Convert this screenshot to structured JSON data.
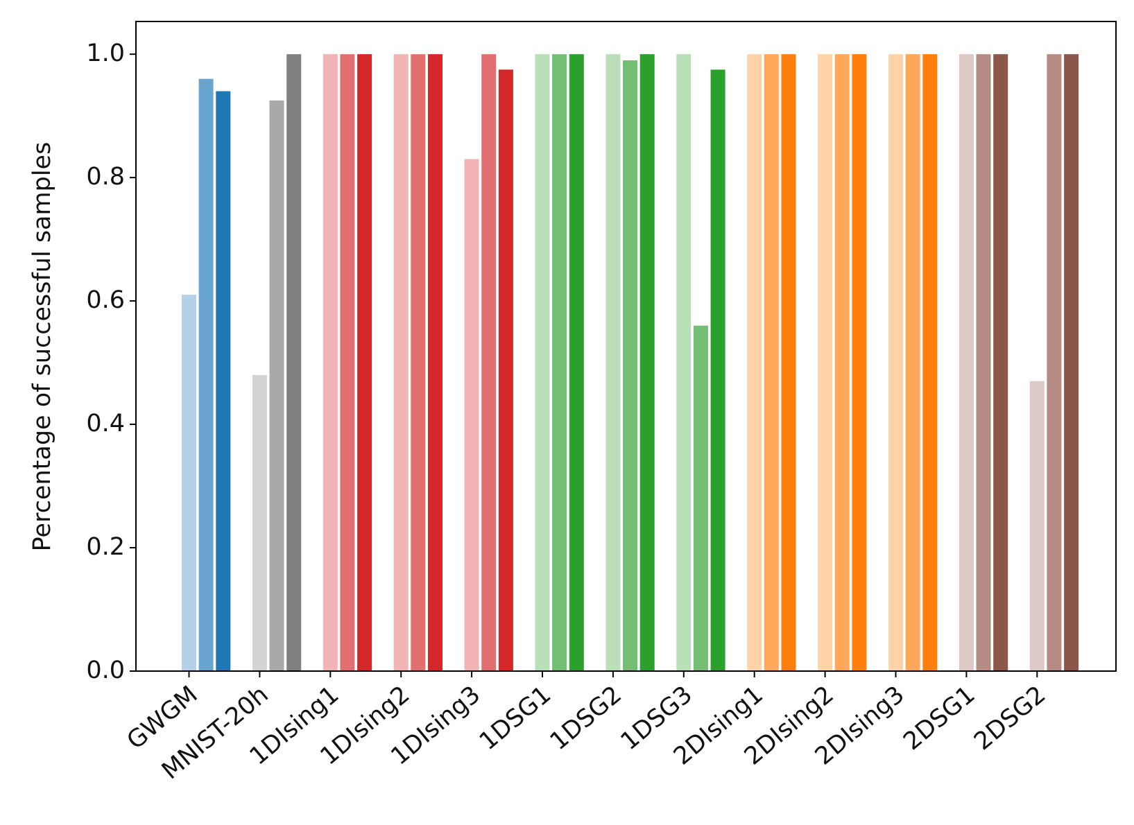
{
  "chart_data": {
    "type": "bar",
    "ylabel": "Percentage of successful samples",
    "categories": [
      "GWGM",
      "MNIST-20h",
      "1DIsing1",
      "1DIsing2",
      "1DIsing3",
      "1DSG1",
      "1DSG2",
      "1DSG3",
      "2DIsing1",
      "2DIsing2",
      "2DIsing3",
      "2DSG1",
      "2DSG2"
    ],
    "series": [
      {
        "colors": [
          "#b3d0e6",
          "#d3d3d3",
          "#f1b3b3",
          "#f1b3b3",
          "#f1b3b3",
          "#b8dfb8",
          "#b8dfb8",
          "#b8dfb8",
          "#ffd2a8",
          "#ffd2a8",
          "#ffd2a8",
          "#dcc8c4",
          "#dcc8c4"
        ],
        "values": [
          0.61,
          0.48,
          1.0,
          1.0,
          0.83,
          1.0,
          1.0,
          1.0,
          1.0,
          1.0,
          1.0,
          1.0,
          0.47
        ]
      },
      {
        "colors": [
          "#6aa5d0",
          "#a9a9a9",
          "#e26f6f",
          "#e26f6f",
          "#e26f6f",
          "#74be74",
          "#74be74",
          "#74be74",
          "#ffa85a",
          "#ffa85a",
          "#ffa85a",
          "#b58b83",
          "#b58b83"
        ],
        "values": [
          0.96,
          0.925,
          1.0,
          1.0,
          1.0,
          1.0,
          0.99,
          0.56,
          1.0,
          1.0,
          1.0,
          1.0,
          1.0
        ]
      },
      {
        "colors": [
          "#1f77b4",
          "#7f7f7f",
          "#d62728",
          "#d62728",
          "#d62728",
          "#2ca02c",
          "#2ca02c",
          "#2ca02c",
          "#ff7f0e",
          "#ff7f0e",
          "#ff7f0e",
          "#8c564b",
          "#8c564b"
        ],
        "values": [
          0.94,
          1.0,
          1.0,
          1.0,
          0.975,
          1.0,
          1.0,
          0.975,
          1.0,
          1.0,
          1.0,
          1.0,
          1.0
        ]
      }
    ],
    "ylim": [
      0,
      1.053
    ],
    "yticks": [
      {
        "value": 0,
        "label": "0.0"
      },
      0.2,
      0.4,
      0.6,
      0.8,
      {
        "value": 1,
        "label": "1.0"
      }
    ],
    "grid": false
  }
}
